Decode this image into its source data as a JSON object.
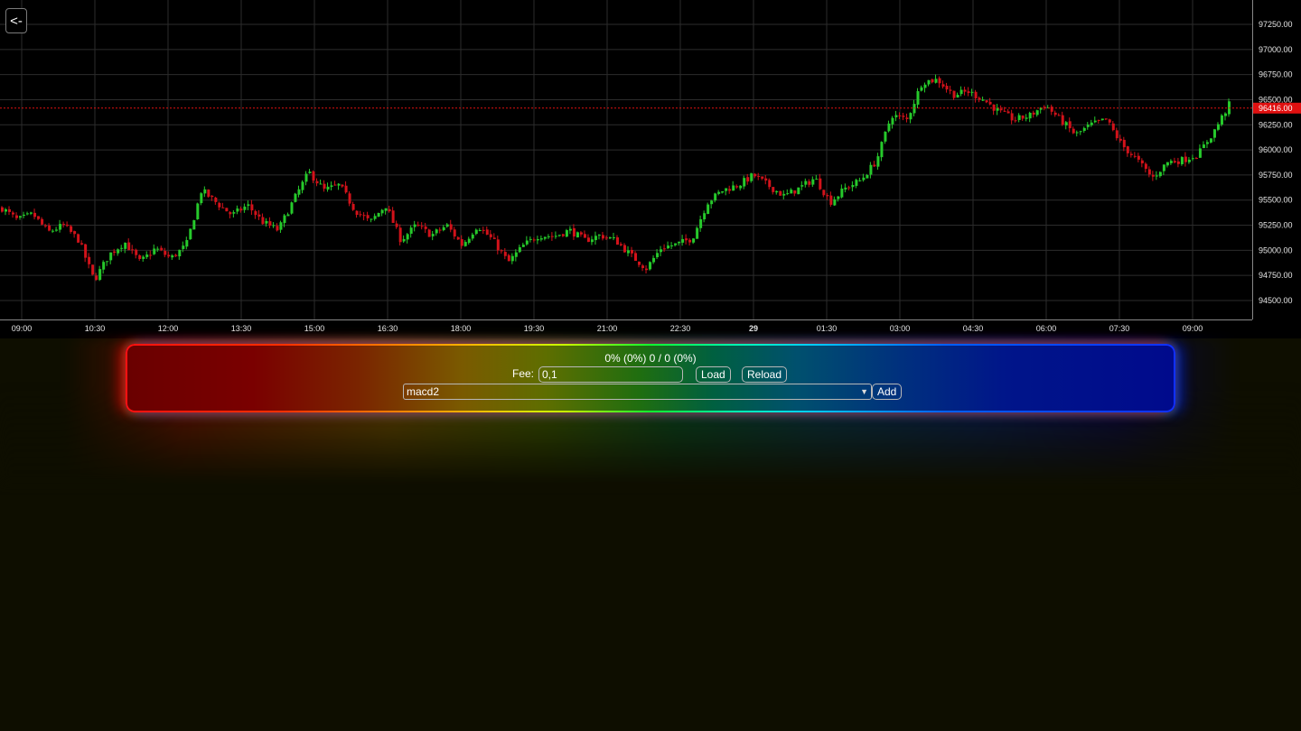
{
  "back_button": {
    "label": "<-"
  },
  "chart": {
    "price_axis_labels": [
      "97250.00",
      "97000.00",
      "96750.00",
      "96500.00",
      "96250.00",
      "96000.00",
      "95750.00",
      "95500.00",
      "95250.00",
      "95000.00",
      "94750.00",
      "94500.00"
    ],
    "current_price_label": "96416.00",
    "time_axis_labels": [
      "09:00",
      "10:30",
      "12:00",
      "13:30",
      "15:00",
      "16:30",
      "18:00",
      "19:30",
      "21:00",
      "22:30",
      "29",
      "01:30",
      "03:00",
      "04:30",
      "06:00",
      "07:30",
      "09:00"
    ],
    "colors": {
      "up": "#26c92b",
      "down": "#d2121a",
      "grid": "#2c2c2c",
      "axis_text": "#e6e6e6",
      "price_line": "#e01010"
    }
  },
  "chart_data": {
    "type": "candlestick",
    "title": "",
    "xlabel": "",
    "ylabel": "",
    "ylim": [
      94380,
      97430
    ],
    "grid": true,
    "legend": "none",
    "current_price": 96416.0,
    "x_ticks": [
      "09:00",
      "10:30",
      "12:00",
      "13:30",
      "15:00",
      "16:30",
      "18:00",
      "19:30",
      "21:00",
      "22:30",
      "29",
      "01:30",
      "03:00",
      "04:30",
      "06:00",
      "07:30",
      "09:00"
    ],
    "close_path": [
      [
        0,
        95420
      ],
      [
        2,
        95300
      ],
      [
        4,
        95360
      ],
      [
        6,
        95180
      ],
      [
        8,
        95250
      ],
      [
        10,
        95100
      ],
      [
        12,
        94700
      ],
      [
        14,
        94960
      ],
      [
        16,
        95080
      ],
      [
        18,
        94880
      ],
      [
        20,
        95020
      ],
      [
        22,
        94920
      ],
      [
        24,
        95050
      ],
      [
        26,
        95600
      ],
      [
        28,
        95470
      ],
      [
        30,
        95350
      ],
      [
        32,
        95450
      ],
      [
        34,
        95280
      ],
      [
        36,
        95200
      ],
      [
        38,
        95500
      ],
      [
        40,
        95780
      ],
      [
        42,
        95600
      ],
      [
        44,
        95650
      ],
      [
        46,
        95400
      ],
      [
        48,
        95280
      ],
      [
        50,
        95450
      ],
      [
        52,
        95100
      ],
      [
        54,
        95250
      ],
      [
        56,
        95150
      ],
      [
        58,
        95250
      ],
      [
        60,
        95050
      ],
      [
        62,
        95250
      ],
      [
        64,
        95100
      ],
      [
        66,
        94880
      ],
      [
        68,
        95050
      ],
      [
        70,
        95150
      ],
      [
        72,
        95140
      ],
      [
        74,
        95200
      ],
      [
        76,
        95100
      ],
      [
        78,
        95150
      ],
      [
        80,
        95100
      ],
      [
        82,
        94950
      ],
      [
        84,
        94820
      ],
      [
        86,
        95030
      ],
      [
        88,
        95060
      ],
      [
        90,
        95120
      ],
      [
        92,
        95480
      ],
      [
        94,
        95600
      ],
      [
        96,
        95650
      ],
      [
        98,
        95750
      ],
      [
        100,
        95640
      ],
      [
        102,
        95540
      ],
      [
        104,
        95620
      ],
      [
        106,
        95720
      ],
      [
        108,
        95480
      ],
      [
        110,
        95620
      ],
      [
        112,
        95700
      ],
      [
        114,
        95890
      ],
      [
        116,
        96350
      ],
      [
        118,
        96300
      ],
      [
        120,
        96680
      ],
      [
        122,
        96700
      ],
      [
        124,
        96550
      ],
      [
        126,
        96580
      ],
      [
        128,
        96500
      ],
      [
        130,
        96380
      ],
      [
        132,
        96300
      ],
      [
        134,
        96340
      ],
      [
        136,
        96450
      ],
      [
        138,
        96300
      ],
      [
        140,
        96150
      ],
      [
        142,
        96250
      ],
      [
        144,
        96300
      ],
      [
        146,
        96050
      ],
      [
        148,
        95900
      ],
      [
        150,
        95720
      ],
      [
        152,
        95880
      ],
      [
        154,
        95900
      ],
      [
        156,
        95960
      ],
      [
        158,
        96180
      ],
      [
        160,
        96450
      ]
    ]
  },
  "panel": {
    "summary": "0% (0%) 0 / 0 (0%)",
    "fee_label": "Fee:",
    "fee_value": "0,1",
    "load_label": "Load",
    "reload_label": "Reload",
    "strategy_selected": "macd2",
    "add_label": "Add"
  }
}
